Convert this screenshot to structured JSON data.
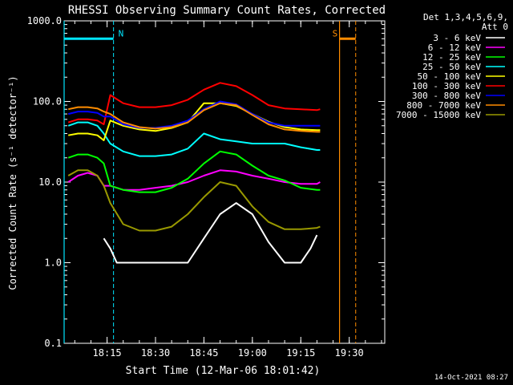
{
  "chart_data": {
    "type": "line",
    "title": "RHESSI Observing Summary Count Rates, Corrected",
    "xlabel": "Start Time (12-Mar-06 18:01:42)",
    "ylabel": "Corrected Count Rate (s⁻¹ detector⁻¹)",
    "y_scale": "log",
    "ylim": [
      0.1,
      1000
    ],
    "xlim": [
      "18:01:42",
      "19:41:00"
    ],
    "x_ticks": [
      "18:15",
      "18:30",
      "18:45",
      "19:00",
      "19:15",
      "19:30"
    ],
    "y_ticks": [
      "0.1",
      "1.0",
      "10.0",
      "100.0",
      "1000.0"
    ],
    "detector_note": [
      "Det 1,3,4,5,6,9,",
      "Att 0"
    ],
    "timestamp": "14-Oct-2021 08:27",
    "legend_position": "top-right",
    "annotations": [
      {
        "label": "N",
        "start": "18:01:42",
        "end": "18:17:00",
        "color": "#00e6ff",
        "kind": "night"
      },
      {
        "label": "S",
        "start": "19:27:00",
        "end": "19:32:00",
        "color": "#ff8c00",
        "kind": "SAA"
      }
    ],
    "series": [
      {
        "name": "3 - 6 keV",
        "color": "#ffffff",
        "x": [
          "18:14",
          "18:16",
          "18:18",
          "18:25",
          "18:31",
          "18:35",
          "18:40",
          "18:45",
          "18:50",
          "18:55",
          "19:00",
          "19:05",
          "19:10",
          "19:15",
          "19:18",
          "19:20"
        ],
        "values": [
          2.0,
          1.5,
          1.0,
          1.0,
          1.0,
          1.0,
          1.0,
          2.0,
          4.0,
          5.5,
          4.0,
          1.8,
          1.0,
          1.0,
          1.5,
          2.2
        ]
      },
      {
        "name": "6 - 12 keV",
        "color": "#ff00ff",
        "x": [
          "18:03",
          "18:06",
          "18:09",
          "18:12",
          "18:14",
          "18:16",
          "18:20",
          "18:25",
          "18:30",
          "18:35",
          "18:40",
          "18:45",
          "18:50",
          "18:55",
          "19:00",
          "19:05",
          "19:10",
          "19:15",
          "19:20",
          "19:21"
        ],
        "values": [
          10.0,
          12.0,
          13.0,
          12.0,
          9.0,
          9.0,
          8.0,
          8.0,
          8.5,
          9.0,
          10.0,
          12.0,
          14.0,
          13.5,
          12.0,
          11.0,
          10.0,
          9.5,
          9.5,
          10.0
        ]
      },
      {
        "name": "12 - 25 keV",
        "color": "#00ff00",
        "x": [
          "18:03",
          "18:06",
          "18:09",
          "18:12",
          "18:14",
          "18:16",
          "18:20",
          "18:25",
          "18:30",
          "18:35",
          "18:40",
          "18:45",
          "18:50",
          "18:55",
          "19:00",
          "19:05",
          "19:10",
          "19:15",
          "19:20",
          "19:21"
        ],
        "values": [
          20.0,
          22.0,
          22.0,
          20.0,
          17.0,
          9.0,
          8.0,
          7.5,
          7.5,
          8.5,
          11.0,
          17.0,
          24.0,
          22.0,
          16.0,
          12.0,
          10.5,
          8.5,
          8.0,
          8.0
        ]
      },
      {
        "name": "25 - 50 keV",
        "color": "#00ffff",
        "x": [
          "18:03",
          "18:06",
          "18:09",
          "18:12",
          "18:14",
          "18:16",
          "18:20",
          "18:25",
          "18:30",
          "18:35",
          "18:40",
          "18:45",
          "18:50",
          "18:55",
          "19:00",
          "19:05",
          "19:10",
          "19:15",
          "19:20",
          "19:21"
        ],
        "values": [
          50.0,
          55.0,
          55.0,
          50.0,
          40.0,
          30.0,
          24.0,
          21.0,
          21.0,
          22.0,
          26.0,
          40.0,
          34.0,
          32.0,
          30.0,
          30.0,
          30.0,
          27.0,
          25.0,
          25.0
        ]
      },
      {
        "name": "50 - 100 keV",
        "color": "#ffff00",
        "x": [
          "18:03",
          "18:06",
          "18:09",
          "18:12",
          "18:14",
          "18:16",
          "18:20",
          "18:25",
          "18:30",
          "18:35",
          "18:40",
          "18:45",
          "18:50",
          "18:55",
          "19:00",
          "19:05",
          "19:10",
          "19:15",
          "19:20",
          "19:21"
        ],
        "values": [
          38.0,
          40.0,
          40.0,
          38.0,
          33.0,
          58.0,
          50.0,
          45.0,
          43.0,
          47.0,
          55.0,
          95.0,
          95.0,
          88.0,
          70.0,
          56.0,
          48.0,
          45.0,
          44.0,
          44.0
        ]
      },
      {
        "name": "100 - 300 keV",
        "color": "#ff0000",
        "x": [
          "18:03",
          "18:06",
          "18:09",
          "18:12",
          "18:14",
          "18:16",
          "18:20",
          "18:25",
          "18:30",
          "18:35",
          "18:40",
          "18:45",
          "18:50",
          "18:55",
          "19:00",
          "19:05",
          "19:10",
          "19:15",
          "19:20",
          "19:21"
        ],
        "values": [
          55.0,
          60.0,
          60.0,
          58.0,
          52.0,
          120.0,
          95.0,
          85.0,
          85.0,
          90.0,
          105.0,
          140.0,
          170.0,
          155.0,
          120.0,
          90.0,
          82.0,
          80.0,
          78.0,
          80.0
        ]
      },
      {
        "name": "300 - 800 keV",
        "color": "#0000ff",
        "x": [
          "18:03",
          "18:06",
          "18:09",
          "18:12",
          "18:14",
          "18:16",
          "18:20",
          "18:25",
          "18:30",
          "18:35",
          "18:40",
          "18:45",
          "18:50",
          "18:55",
          "19:00",
          "19:05",
          "19:10",
          "19:15",
          "19:20",
          "19:21"
        ],
        "values": [
          70.0,
          75.0,
          75.0,
          72.0,
          65.0,
          65.0,
          52.0,
          47.0,
          47.0,
          50.0,
          58.0,
          80.0,
          100.0,
          92.0,
          70.0,
          55.0,
          50.0,
          50.0,
          50.0,
          50.0
        ]
      },
      {
        "name": "800 - 7000 keV",
        "color": "#ff8c00",
        "x": [
          "18:03",
          "18:06",
          "18:09",
          "18:12",
          "18:14",
          "18:16",
          "18:20",
          "18:25",
          "18:30",
          "18:35",
          "18:40",
          "18:45",
          "18:50",
          "18:55",
          "19:00",
          "19:05",
          "19:10",
          "19:15",
          "19:20",
          "19:21"
        ],
        "values": [
          80.0,
          85.0,
          85.0,
          82.0,
          75.0,
          70.0,
          55.0,
          48.0,
          46.0,
          48.0,
          55.0,
          78.0,
          95.0,
          90.0,
          68.0,
          52.0,
          45.0,
          43.0,
          42.0,
          42.0
        ]
      },
      {
        "name": "7000 - 15000 keV",
        "color": "#999900",
        "x": [
          "18:03",
          "18:06",
          "18:09",
          "18:12",
          "18:14",
          "18:16",
          "18:20",
          "18:25",
          "18:30",
          "18:35",
          "18:40",
          "18:45",
          "18:50",
          "18:55",
          "19:00",
          "19:05",
          "19:10",
          "19:15",
          "19:20",
          "19:21"
        ],
        "values": [
          12.0,
          14.0,
          14.0,
          12.0,
          9.0,
          5.5,
          3.0,
          2.5,
          2.5,
          2.8,
          4.0,
          6.5,
          10.0,
          9.0,
          5.0,
          3.2,
          2.6,
          2.6,
          2.7,
          2.8
        ]
      }
    ]
  }
}
